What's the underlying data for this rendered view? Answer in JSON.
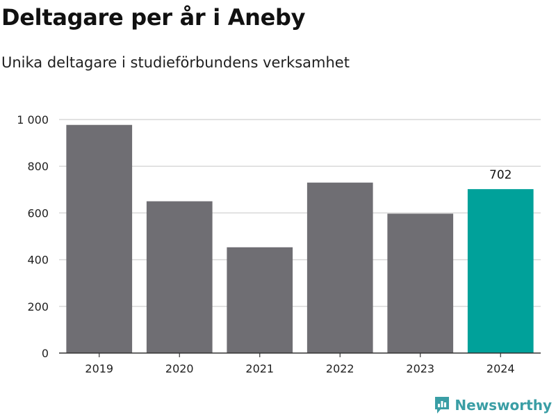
{
  "header": {
    "title": "Deltagare per år i Aneby",
    "subtitle": "Unika deltagare i studieförbundens verksamhet"
  },
  "branding": {
    "name": "Newsworthy",
    "icon": "newsworthy-logo-icon",
    "color": "#3a9ea5"
  },
  "colors": {
    "default_bar": "#6f6e73",
    "highlight_bar": "#00a19a",
    "grid": "#d9d9d9",
    "axis": "#333333"
  },
  "chart_data": {
    "type": "bar",
    "categories": [
      "2019",
      "2020",
      "2021",
      "2022",
      "2023",
      "2024"
    ],
    "values": [
      977,
      650,
      453,
      730,
      597,
      702
    ],
    "highlight_index": 5,
    "data_labels": [
      null,
      null,
      null,
      null,
      null,
      "702"
    ],
    "title": "Deltagare per år i Aneby",
    "subtitle": "Unika deltagare i studieförbundens verksamhet",
    "xlabel": "",
    "ylabel": "",
    "ylim": [
      0,
      1000
    ],
    "yticks": [
      0,
      200,
      400,
      600,
      800,
      1000
    ],
    "ytick_labels": [
      "0",
      "200",
      "400",
      "600",
      "800",
      "1 000"
    ],
    "grid": true,
    "legend": "none"
  }
}
